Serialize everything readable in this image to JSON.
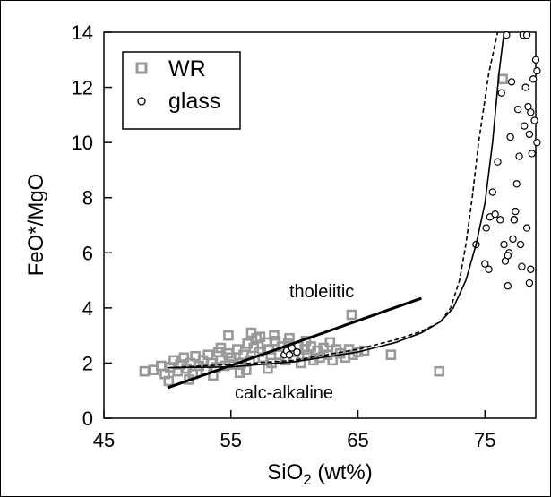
{
  "chart_data": {
    "type": "scatter",
    "xlabel": "SiO2 (wt%)",
    "xlabel_main": "SiO",
    "xlabel_sub": "2",
    "xlabel_tail": " (wt%)",
    "ylabel": "FeO*/MgO",
    "xlim": [
      45,
      79
    ],
    "ylim": [
      0,
      14
    ],
    "xticks": [
      45,
      55,
      65,
      75
    ],
    "yticks": [
      0,
      2,
      4,
      6,
      8,
      10,
      12,
      14
    ],
    "legend_position": "top-left",
    "legend": [
      {
        "label": "WR",
        "marker": "square",
        "color": "#999999"
      },
      {
        "label": "glass",
        "marker": "circle",
        "color": "#000000"
      }
    ],
    "annotations": {
      "upper": "tholeiitic",
      "lower": "calc-alkaline"
    },
    "series": [
      {
        "name": "WR",
        "marker": "square",
        "color": "#999999",
        "points": [
          [
            48.2,
            1.7
          ],
          [
            48.9,
            1.75
          ],
          [
            49.5,
            1.9
          ],
          [
            49.8,
            1.6
          ],
          [
            50.2,
            1.85
          ],
          [
            50.5,
            2.1
          ],
          [
            50.8,
            1.7
          ],
          [
            51.0,
            1.95
          ],
          [
            51.3,
            2.2
          ],
          [
            51.5,
            1.8
          ],
          [
            51.8,
            2.0
          ],
          [
            52.0,
            1.6
          ],
          [
            52.2,
            2.25
          ],
          [
            52.5,
            1.9
          ],
          [
            52.8,
            2.1
          ],
          [
            53.0,
            1.75
          ],
          [
            53.2,
            2.3
          ],
          [
            53.5,
            2.0
          ],
          [
            53.8,
            1.85
          ],
          [
            54.0,
            2.4
          ],
          [
            54.2,
            2.1
          ],
          [
            54.5,
            1.9
          ],
          [
            54.8,
            2.35
          ],
          [
            55.0,
            2.2
          ],
          [
            55.2,
            1.95
          ],
          [
            55.5,
            2.5
          ],
          [
            55.8,
            2.0
          ],
          [
            56.0,
            2.3
          ],
          [
            56.3,
            2.7
          ],
          [
            56.5,
            2.1
          ],
          [
            56.8,
            2.55
          ],
          [
            57.0,
            2.9
          ],
          [
            57.2,
            2.4
          ],
          [
            57.5,
            2.2
          ],
          [
            57.8,
            2.75
          ],
          [
            58.0,
            2.5
          ],
          [
            58.2,
            2.0
          ],
          [
            58.5,
            2.8
          ],
          [
            58.8,
            2.3
          ],
          [
            59.0,
            2.6
          ],
          [
            59.3,
            2.1
          ],
          [
            59.5,
            2.7
          ],
          [
            59.8,
            2.4
          ],
          [
            60.0,
            2.2
          ],
          [
            60.3,
            2.6
          ],
          [
            60.5,
            2.0
          ],
          [
            60.8,
            2.5
          ],
          [
            61.0,
            2.3
          ],
          [
            61.3,
            2.6
          ],
          [
            61.5,
            2.1
          ],
          [
            61.8,
            2.45
          ],
          [
            62.0,
            2.2
          ],
          [
            62.3,
            2.55
          ],
          [
            62.6,
            2.3
          ],
          [
            63.0,
            2.1
          ],
          [
            63.3,
            2.5
          ],
          [
            63.6,
            2.35
          ],
          [
            64.0,
            2.2
          ],
          [
            64.3,
            2.5
          ],
          [
            64.6,
            2.3
          ],
          [
            65.0,
            2.4
          ],
          [
            65.5,
            2.45
          ],
          [
            54.8,
            3.0
          ],
          [
            56.6,
            3.1
          ],
          [
            57.3,
            2.95
          ],
          [
            58.4,
            3.0
          ],
          [
            59.6,
            2.9
          ],
          [
            60.9,
            2.8
          ],
          [
            62.8,
            2.75
          ],
          [
            64.5,
            3.75
          ],
          [
            67.6,
            2.3
          ],
          [
            71.4,
            1.7
          ],
          [
            76.4,
            12.3
          ],
          [
            51.7,
            1.4
          ],
          [
            53.6,
            1.55
          ],
          [
            55.7,
            1.65
          ],
          [
            57.9,
            1.8
          ],
          [
            50.1,
            1.35
          ],
          [
            54.2,
            2.55
          ],
          [
            56.2,
            1.75
          ]
        ]
      },
      {
        "name": "glass",
        "marker": "circle",
        "color": "#000000",
        "points": [
          [
            59.2,
            2.3
          ],
          [
            59.4,
            2.45
          ],
          [
            59.6,
            2.3
          ],
          [
            59.8,
            2.55
          ],
          [
            60.2,
            2.4
          ],
          [
            74.3,
            6.3
          ],
          [
            75.0,
            5.6
          ],
          [
            75.1,
            6.9
          ],
          [
            75.3,
            5.4
          ],
          [
            75.4,
            7.3
          ],
          [
            75.6,
            8.2
          ],
          [
            75.8,
            7.4
          ],
          [
            76.0,
            9.3
          ],
          [
            76.2,
            7.2
          ],
          [
            76.5,
            6.3
          ],
          [
            76.6,
            5.7
          ],
          [
            76.7,
            13.9
          ],
          [
            76.8,
            4.8
          ],
          [
            76.9,
            6.0
          ],
          [
            77.0,
            10.2
          ],
          [
            77.1,
            12.2
          ],
          [
            77.2,
            6.5
          ],
          [
            77.3,
            7.2
          ],
          [
            77.4,
            7.5
          ],
          [
            77.5,
            8.5
          ],
          [
            77.6,
            11.2
          ],
          [
            77.7,
            9.5
          ],
          [
            77.8,
            6.3
          ],
          [
            77.9,
            5.5
          ],
          [
            78.0,
            13.9
          ],
          [
            78.1,
            10.6
          ],
          [
            78.2,
            12.0
          ],
          [
            78.3,
            6.9
          ],
          [
            78.4,
            11.3
          ],
          [
            78.5,
            10.3
          ],
          [
            78.6,
            11.1
          ],
          [
            78.7,
            9.6
          ],
          [
            78.8,
            12.3
          ],
          [
            78.9,
            10.8
          ],
          [
            79.0,
            13.0
          ],
          [
            78.6,
            5.4
          ],
          [
            78.5,
            4.9
          ],
          [
            76.3,
            11.8
          ],
          [
            77.3,
            7.2
          ],
          [
            78.3,
            13.9
          ],
          [
            79.1,
            10.0
          ],
          [
            79.1,
            12.6
          ],
          [
            76.8,
            5.9
          ]
        ]
      }
    ],
    "lines": [
      {
        "name": "tholeiitic",
        "style": "solid",
        "width": 3,
        "points": [
          [
            50.0,
            1.1
          ],
          [
            70.0,
            4.35
          ]
        ]
      },
      {
        "name": "trend-solid",
        "style": "solid",
        "width": 1.6,
        "points": [
          [
            50,
            1.83
          ],
          [
            55,
            1.86
          ],
          [
            60,
            2.05
          ],
          [
            65,
            2.4
          ],
          [
            68,
            2.75
          ],
          [
            70,
            3.1
          ],
          [
            71.5,
            3.5
          ],
          [
            72.5,
            4.0
          ],
          [
            73.5,
            5.0
          ],
          [
            74.3,
            6.3
          ],
          [
            75,
            7.8
          ],
          [
            75.6,
            10.0
          ],
          [
            76.1,
            12.5
          ],
          [
            76.5,
            14.0
          ]
        ]
      },
      {
        "name": "trend-dashed",
        "style": "dashed",
        "width": 1.6,
        "points": [
          [
            50,
            1.83
          ],
          [
            55,
            1.95
          ],
          [
            60,
            2.1
          ],
          [
            65,
            2.5
          ],
          [
            68,
            2.85
          ],
          [
            70,
            3.15
          ],
          [
            71.5,
            3.5
          ],
          [
            72.3,
            4.0
          ],
          [
            73.0,
            5.0
          ],
          [
            73.5,
            6.3
          ],
          [
            74.0,
            8.0
          ],
          [
            74.5,
            10.0
          ],
          [
            75.3,
            12.5
          ],
          [
            76.0,
            14.0
          ]
        ]
      }
    ]
  }
}
